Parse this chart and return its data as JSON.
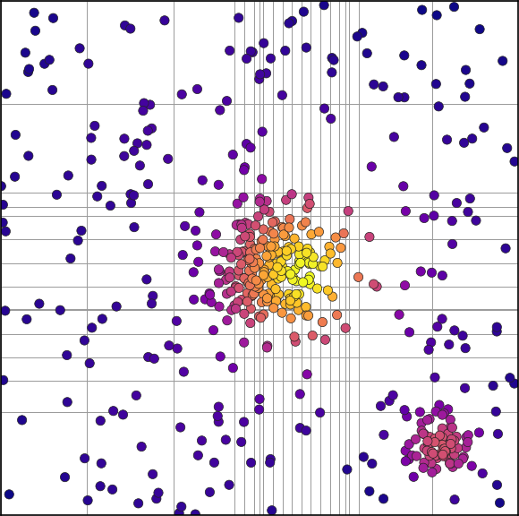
{
  "colormap": "plasma",
  "background_color": "#ffffff",
  "grid_color": "#999999",
  "grid_linewidth": 0.7,
  "marker_size": 55,
  "marker_edge_color": "#222222",
  "marker_edge_width": 0.5,
  "figsize": [
    5.8,
    5.76
  ],
  "dpi": 100,
  "xlim": [
    -3.14159,
    3.14159
  ],
  "ylim": [
    -3.14159,
    3.14159
  ],
  "seed": 12345
}
